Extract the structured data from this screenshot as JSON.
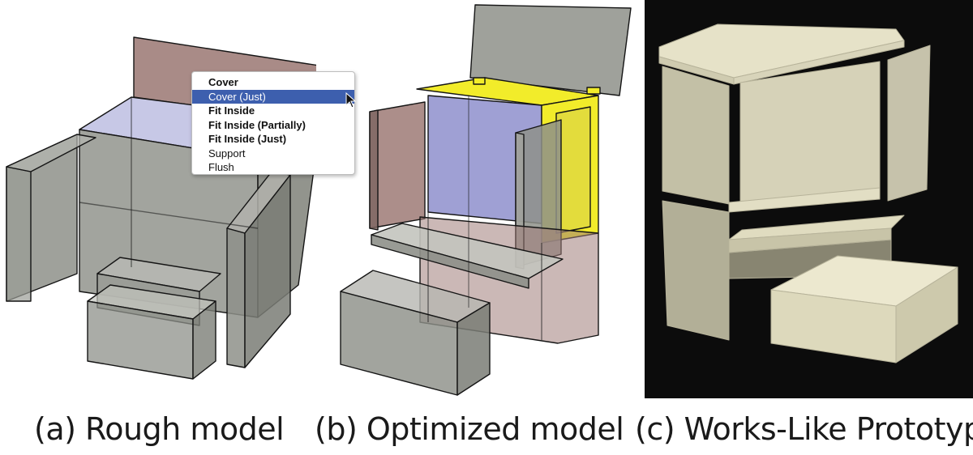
{
  "captions": {
    "a": "(a) Rough model",
    "b": "(b) Optimized model",
    "c": "(c) Works-Like Prototype"
  },
  "context_menu": {
    "items": [
      {
        "label": "Cover",
        "bold": true,
        "selected": false
      },
      {
        "label": "Cover (Just)",
        "bold": false,
        "selected": true
      },
      {
        "label": "Fit Inside",
        "bold": true,
        "selected": false
      },
      {
        "label": "Fit Inside (Partially)",
        "bold": true,
        "selected": false
      },
      {
        "label": "Fit Inside (Just)",
        "bold": true,
        "selected": false
      },
      {
        "label": "Support",
        "bold": false,
        "selected": false
      },
      {
        "label": "Flush",
        "bold": false,
        "selected": false
      }
    ]
  },
  "colors": {
    "part_gray": "#8e9089",
    "lid_red": "#a07e7a",
    "highlight_blue": "#c7c8e6",
    "contact_yellow": "#f2ec2a",
    "menu_selected": "#3d5fae",
    "photo_background": "#0c0c0c",
    "prototype_resin": "#e6e2c8"
  }
}
